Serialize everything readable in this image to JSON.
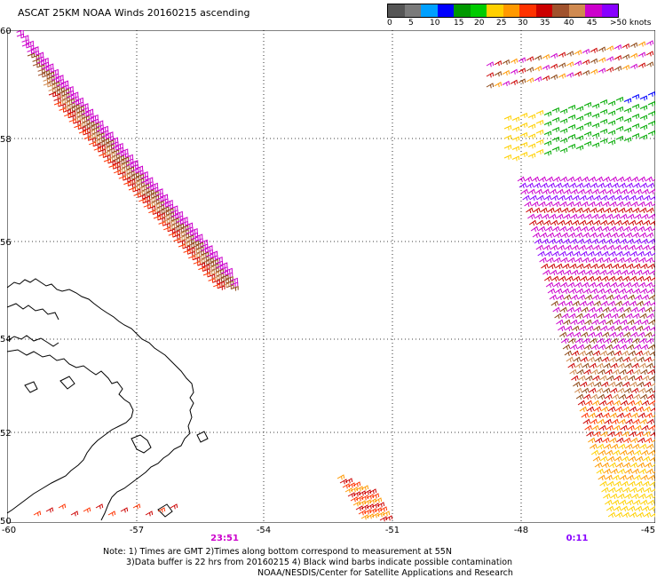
{
  "title": "ASCAT 25KM NOAA Winds 20160215 ascending",
  "legend": {
    "colors": [
      "#555555",
      "#7a7a7a",
      "#00a0ff",
      "#0000ff",
      "#009900",
      "#00cc00",
      "#ffd000",
      "#ff9900",
      "#ff3300",
      "#cc0000",
      "#a0522d",
      "#d08a50",
      "#cc00cc",
      "#8800ff"
    ],
    "labels": [
      "0",
      "5",
      "10",
      "15",
      "20",
      "25",
      "30",
      "35",
      "40",
      "45",
      ">50 knots"
    ],
    "label_x": [
      0,
      24,
      48,
      75,
      98,
      123,
      147,
      172,
      199,
      225,
      251
    ]
  },
  "lat_labels": [
    {
      "text": "60",
      "y": 30
    },
    {
      "text": "58",
      "y": 152
    },
    {
      "text": "56",
      "y": 268
    },
    {
      "text": "54",
      "y": 377
    },
    {
      "text": "52",
      "y": 483
    },
    {
      "text": "50",
      "y": 582
    }
  ],
  "lon_labels": [
    {
      "text": "-60",
      "x": 10
    },
    {
      "text": "-57",
      "x": 154
    },
    {
      "text": "-54",
      "x": 297
    },
    {
      "text": "-51",
      "x": 442
    },
    {
      "text": "-48",
      "x": 587
    },
    {
      "text": "-45",
      "x": 730
    }
  ],
  "times": [
    {
      "text": "23:51",
      "x": 253,
      "color": "#cc00cc"
    },
    {
      "text": "0:11",
      "x": 650,
      "color": "#8800ff"
    }
  ],
  "notes": [
    "Note: 1) Times are GMT 2)Times along bottom correspond to measurement at 55N",
    "3)Data buffer is 22 hrs from 20160215 4) Black wind barbs indicate possible contamination",
    "NOAA/NESDIS/Center for Satellite Applications and Research"
  ]
}
